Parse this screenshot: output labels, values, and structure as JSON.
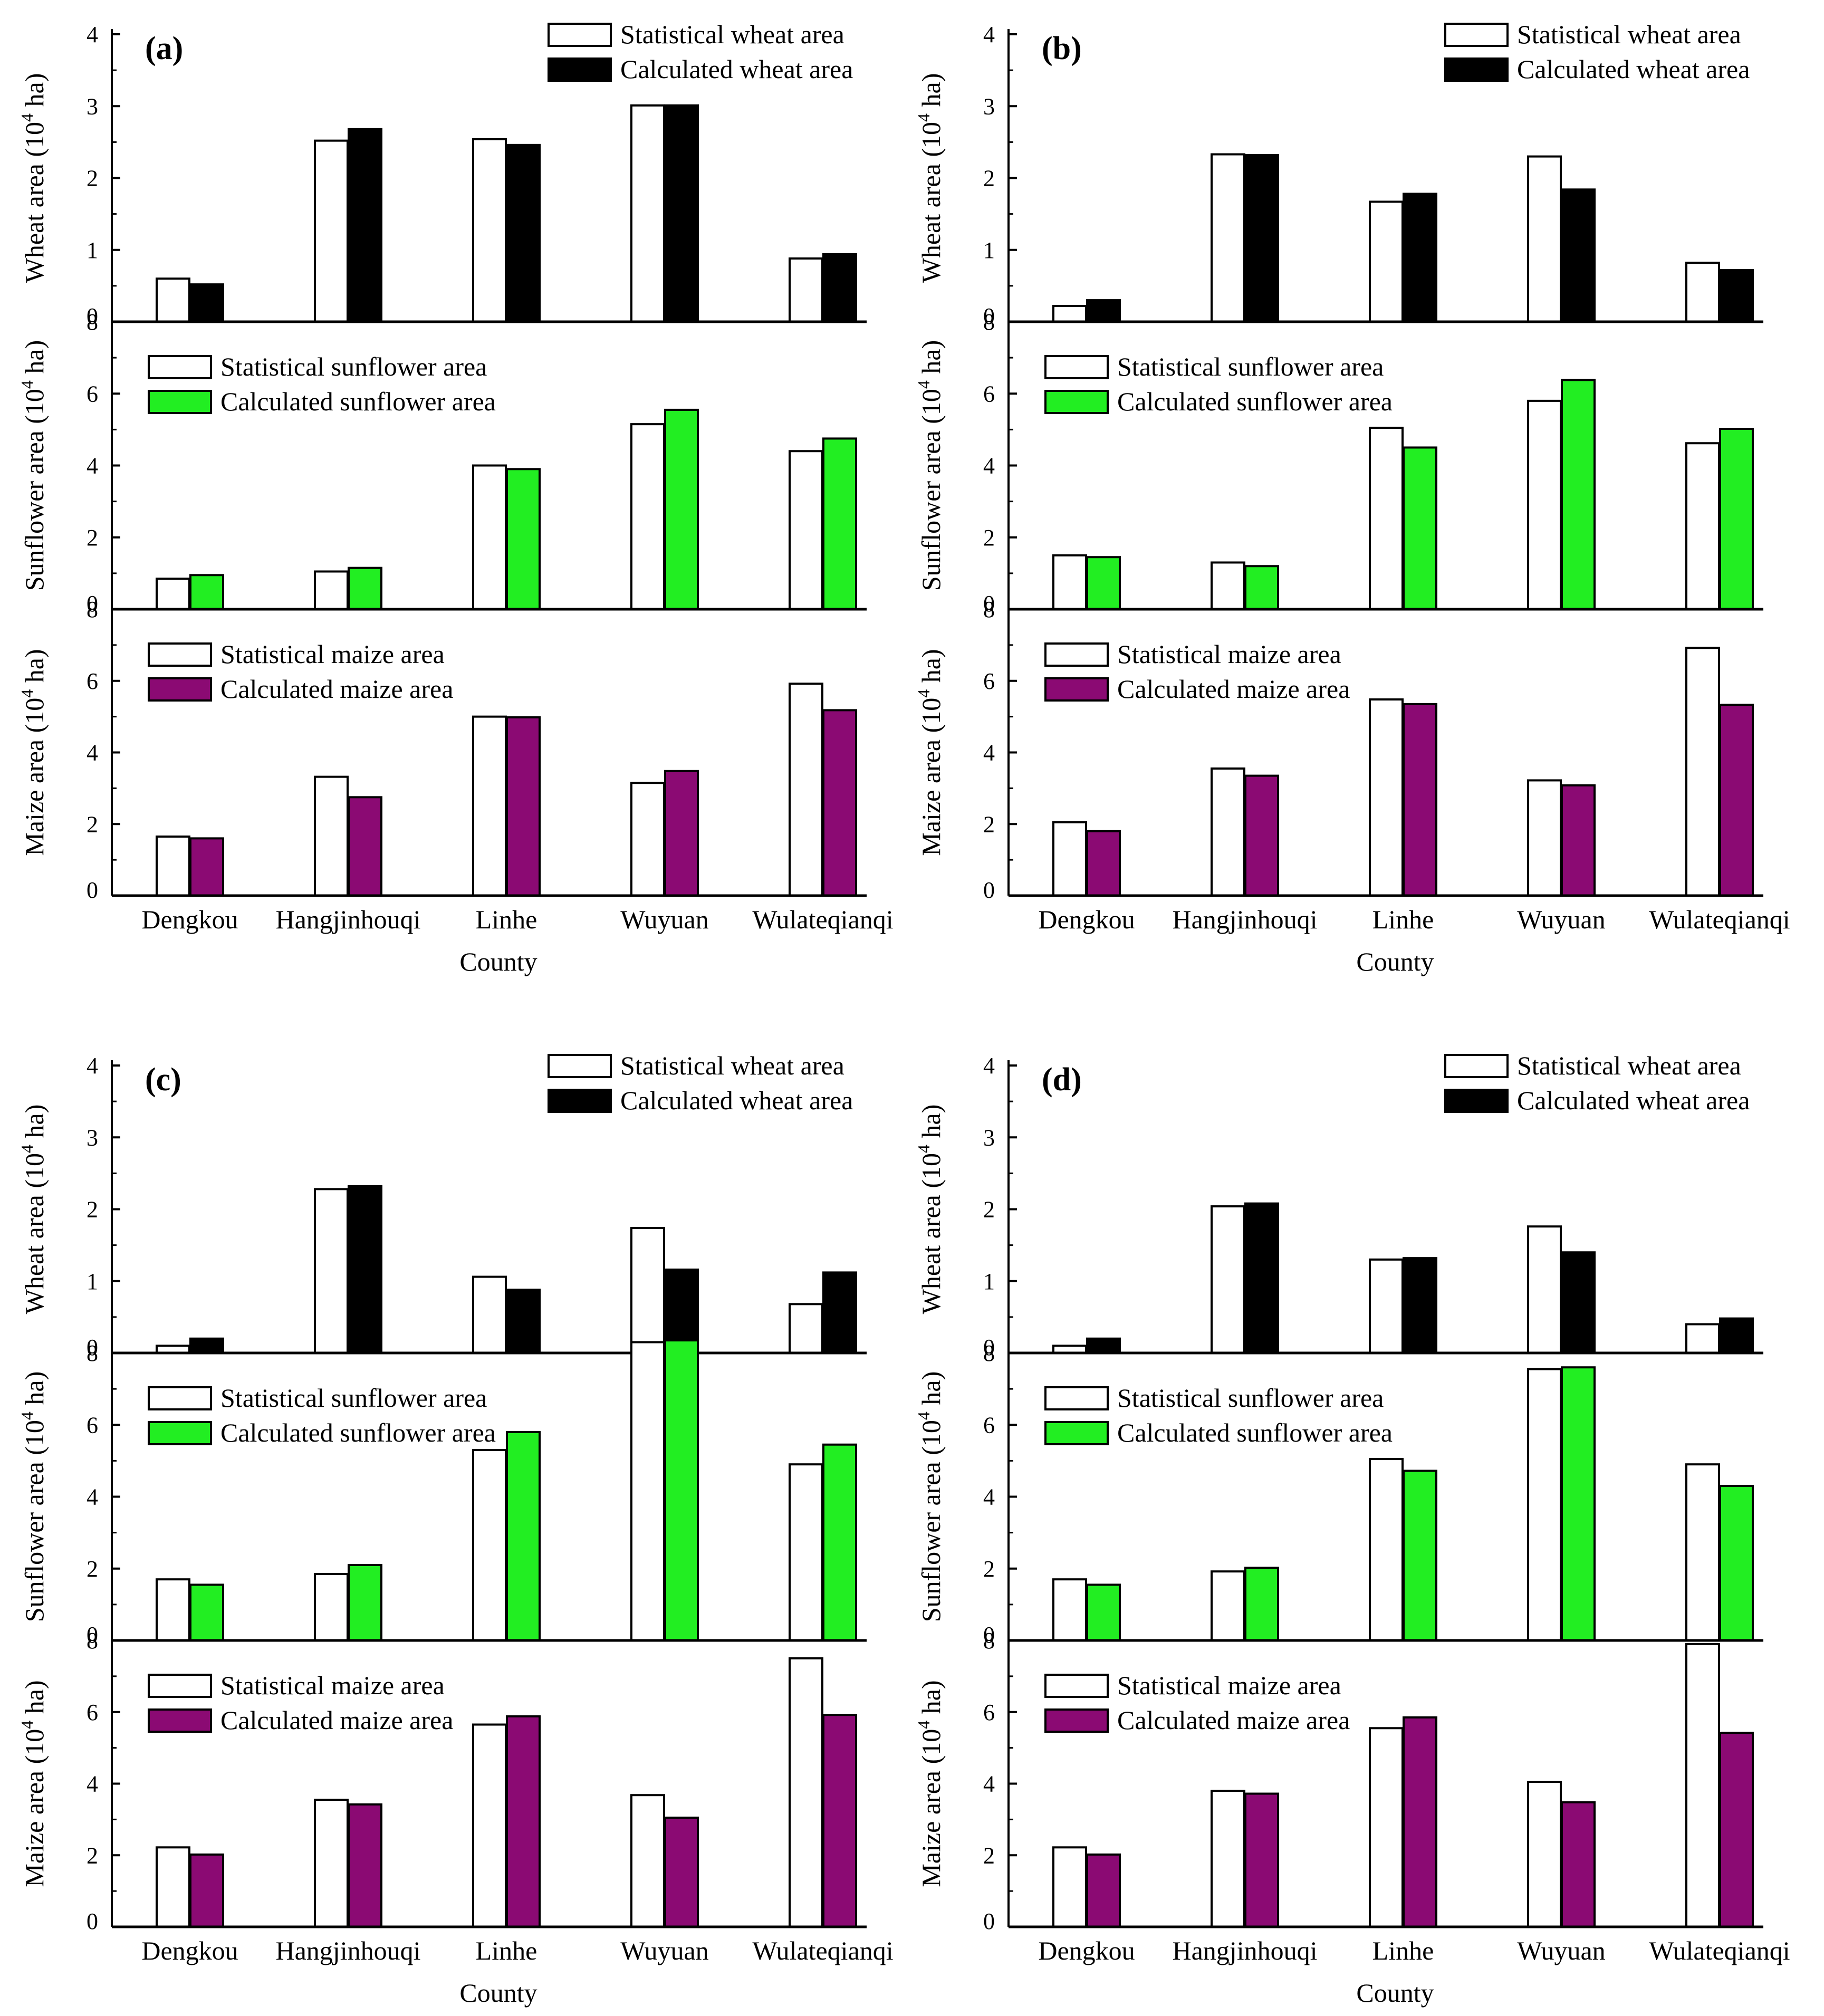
{
  "chart_data": [
    {
      "label": "(a)",
      "type": "bar",
      "categories": [
        "Dengkou",
        "Hangjinhouqi",
        "Linhe",
        "Wuyuan",
        "Wulateqianqi"
      ],
      "xlabel": "County",
      "panels": [
        {
          "crop": "wheat",
          "ylabel": "Wheat area (10^4 ha)",
          "ylim": [
            0,
            4
          ],
          "yticks": [
            0,
            1,
            2,
            3,
            4
          ],
          "series": [
            {
              "name": "Statistical wheat area",
              "color": "#ffffff",
              "values": [
                0.6,
                2.52,
                2.54,
                3.01,
                0.88
              ]
            },
            {
              "name": "Calculated wheat area",
              "color": "#000000",
              "values": [
                0.52,
                2.68,
                2.46,
                3.01,
                0.94
              ]
            }
          ]
        },
        {
          "crop": "sunflower",
          "ylabel": "Sunflower area (10^4 ha)",
          "ylim": [
            0,
            8
          ],
          "yticks": [
            0,
            2,
            4,
            6,
            8
          ],
          "series": [
            {
              "name": "Statistical sunflower area",
              "color": "#ffffff",
              "values": [
                0.85,
                1.05,
                4.0,
                5.15,
                4.4
              ]
            },
            {
              "name": "Calculated sunflower area",
              "color": "#22ee22",
              "values": [
                0.95,
                1.15,
                3.9,
                5.55,
                4.75
              ]
            }
          ]
        },
        {
          "crop": "maize",
          "ylabel": "Maize area (10^4 ha)",
          "ylim": [
            0,
            8
          ],
          "yticks": [
            0,
            2,
            4,
            6,
            8
          ],
          "series": [
            {
              "name": "Statistical maize area",
              "color": "#ffffff",
              "values": [
                1.65,
                3.32,
                5.0,
                3.15,
                5.92
              ]
            },
            {
              "name": "Calculated maize area",
              "color": "#8b0a73",
              "values": [
                1.6,
                2.75,
                4.98,
                3.48,
                5.18
              ]
            }
          ]
        }
      ]
    },
    {
      "label": "(b)",
      "type": "bar",
      "categories": [
        "Dengkou",
        "Hangjinhouqi",
        "Linhe",
        "Wuyuan",
        "Wulateqianqi"
      ],
      "xlabel": "County",
      "panels": [
        {
          "crop": "wheat",
          "ylabel": "Wheat area (10^4 ha)",
          "ylim": [
            0,
            4
          ],
          "yticks": [
            0,
            1,
            2,
            3,
            4
          ],
          "series": [
            {
              "name": "Statistical wheat area",
              "color": "#ffffff",
              "values": [
                0.22,
                2.33,
                1.67,
                2.3,
                0.82
              ]
            },
            {
              "name": "Calculated wheat area",
              "color": "#000000",
              "values": [
                0.3,
                2.32,
                1.78,
                1.84,
                0.72
              ]
            }
          ]
        },
        {
          "crop": "sunflower",
          "ylabel": "Sunflower area (10^4 ha)",
          "ylim": [
            0,
            8
          ],
          "yticks": [
            0,
            2,
            4,
            6,
            8
          ],
          "series": [
            {
              "name": "Statistical sunflower area",
              "color": "#ffffff",
              "values": [
                1.5,
                1.3,
                5.05,
                5.8,
                4.62
              ]
            },
            {
              "name": "Calculated sunflower area",
              "color": "#22ee22",
              "values": [
                1.45,
                1.2,
                4.5,
                6.38,
                5.02
              ]
            }
          ]
        },
        {
          "crop": "maize",
          "ylabel": "Maize area (10^4 ha)",
          "ylim": [
            0,
            8
          ],
          "yticks": [
            0,
            2,
            4,
            6,
            8
          ],
          "series": [
            {
              "name": "Statistical maize area",
              "color": "#ffffff",
              "values": [
                2.05,
                3.55,
                5.48,
                3.22,
                6.92
              ]
            },
            {
              "name": "Calculated maize area",
              "color": "#8b0a73",
              "values": [
                1.8,
                3.35,
                5.35,
                3.08,
                5.33
              ]
            }
          ]
        }
      ]
    },
    {
      "label": "(c)",
      "type": "bar",
      "categories": [
        "Dengkou",
        "Hangjinhouqi",
        "Linhe",
        "Wuyuan",
        "Wulateqianqi"
      ],
      "xlabel": "County",
      "panels": [
        {
          "crop": "wheat",
          "ylabel": "Wheat area (10^4 ha)",
          "ylim": [
            0,
            4
          ],
          "yticks": [
            0,
            1,
            2,
            3,
            4
          ],
          "series": [
            {
              "name": "Statistical wheat area",
              "color": "#ffffff",
              "values": [
                0.1,
                2.28,
                1.06,
                1.74,
                0.68
              ]
            },
            {
              "name": "Calculated wheat area",
              "color": "#000000",
              "values": [
                0.2,
                2.32,
                0.88,
                1.16,
                1.12
              ]
            }
          ]
        },
        {
          "crop": "sunflower",
          "ylabel": "Sunflower area (10^4 ha)",
          "ylim": [
            0,
            8
          ],
          "yticks": [
            0,
            2,
            4,
            6,
            8
          ],
          "series": [
            {
              "name": "Statistical sunflower area",
              "color": "#ffffff",
              "values": [
                1.7,
                1.85,
                5.3,
                8.3,
                4.9
              ]
            },
            {
              "name": "Calculated sunflower area",
              "color": "#22ee22",
              "values": [
                1.55,
                2.1,
                5.8,
                8.35,
                5.45
              ]
            }
          ]
        },
        {
          "crop": "maize",
          "ylabel": "Maize area (10^4 ha)",
          "ylim": [
            0,
            8
          ],
          "yticks": [
            0,
            2,
            4,
            6,
            8
          ],
          "series": [
            {
              "name": "Statistical maize area",
              "color": "#ffffff",
              "values": [
                2.22,
                3.55,
                5.65,
                3.68,
                7.5
              ]
            },
            {
              "name": "Calculated maize area",
              "color": "#8b0a73",
              "values": [
                2.02,
                3.42,
                5.88,
                3.05,
                5.92
              ]
            }
          ]
        }
      ]
    },
    {
      "label": "(d)",
      "type": "bar",
      "categories": [
        "Dengkou",
        "Hangjinhouqi",
        "Linhe",
        "Wuyuan",
        "Wulateqianqi"
      ],
      "xlabel": "County",
      "panels": [
        {
          "crop": "wheat",
          "ylabel": "Wheat area (10^4 ha)",
          "ylim": [
            0,
            4
          ],
          "yticks": [
            0,
            1,
            2,
            3,
            4
          ],
          "series": [
            {
              "name": "Statistical wheat area",
              "color": "#ffffff",
              "values": [
                0.1,
                2.04,
                1.3,
                1.76,
                0.4
              ]
            },
            {
              "name": "Calculated wheat area",
              "color": "#000000",
              "values": [
                0.2,
                2.08,
                1.32,
                1.4,
                0.48
              ]
            }
          ]
        },
        {
          "crop": "sunflower",
          "ylabel": "Sunflower area (10^4 ha)",
          "ylim": [
            0,
            8
          ],
          "yticks": [
            0,
            2,
            4,
            6,
            8
          ],
          "series": [
            {
              "name": "Statistical sunflower area",
              "color": "#ffffff",
              "values": [
                1.7,
                1.92,
                5.05,
                7.55,
                4.9
              ]
            },
            {
              "name": "Calculated sunflower area",
              "color": "#22ee22",
              "values": [
                1.55,
                2.02,
                4.72,
                7.6,
                4.3
              ]
            }
          ]
        },
        {
          "crop": "maize",
          "ylabel": "Maize area (10^4 ha)",
          "ylim": [
            0,
            8
          ],
          "yticks": [
            0,
            2,
            4,
            6,
            8
          ],
          "series": [
            {
              "name": "Statistical maize area",
              "color": "#ffffff",
              "values": [
                2.22,
                3.8,
                5.55,
                4.05,
                7.9
              ]
            },
            {
              "name": "Calculated maize area",
              "color": "#8b0a73",
              "values": [
                2.02,
                3.72,
                5.85,
                3.48,
                5.42
              ]
            }
          ]
        }
      ]
    }
  ]
}
